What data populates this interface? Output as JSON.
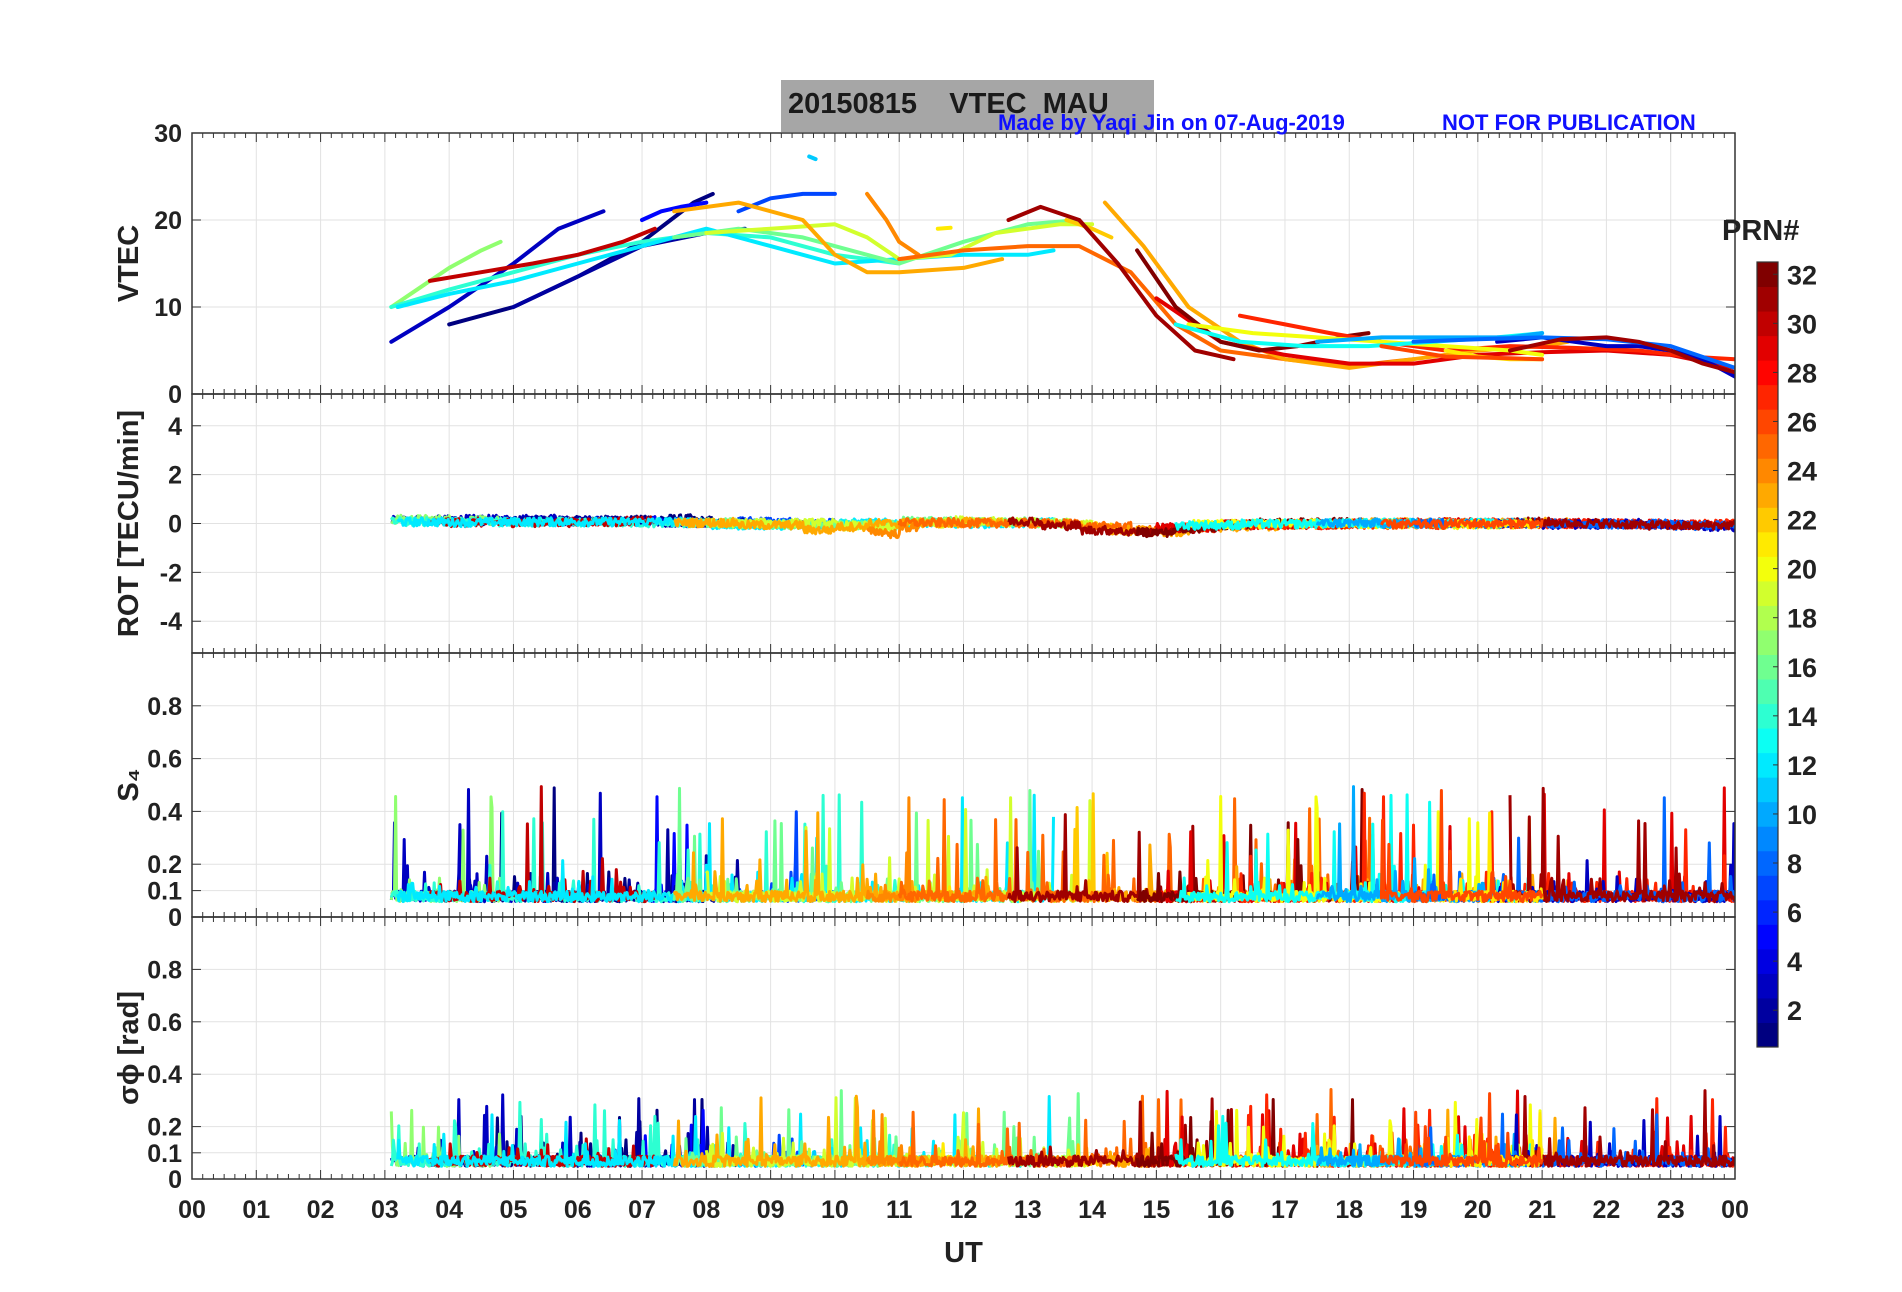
{
  "header": {
    "title": "20150815    VTEC  MAU",
    "credit": "Made by Yaqi Jin on 07-Aug-2019",
    "notice": "NOT FOR PUBLICATION"
  },
  "chart_data": {
    "type": "line",
    "x_axis": {
      "label": "UT",
      "range": [
        0,
        24
      ],
      "ticks": [
        0,
        1,
        2,
        3,
        4,
        5,
        6,
        7,
        8,
        9,
        10,
        11,
        12,
        13,
        14,
        15,
        16,
        17,
        18,
        19,
        20,
        21,
        22,
        23,
        24
      ],
      "tick_labels": [
        "00",
        "01",
        "02",
        "03",
        "04",
        "05",
        "06",
        "07",
        "08",
        "09",
        "10",
        "11",
        "12",
        "13",
        "14",
        "15",
        "16",
        "17",
        "18",
        "19",
        "20",
        "21",
        "22",
        "23",
        "00"
      ]
    },
    "panels": [
      {
        "id": "vtec",
        "ylabel": "VTEC",
        "ylim": [
          0,
          30
        ],
        "yticks": [
          0,
          10,
          20,
          30
        ],
        "ytick_labels": [
          "0",
          "10",
          "20",
          "30"
        ],
        "series": [
          {
            "prn": 1,
            "x": [
              4.0,
              5.0,
              6.0,
              7.0,
              7.8,
              8.1
            ],
            "y": [
              8,
              10,
              13.5,
              17.5,
              22,
              23
            ]
          },
          {
            "prn": 3,
            "x": [
              3.1,
              4.0,
              5.0,
              5.7,
              6.4
            ],
            "y": [
              6,
              10,
              15,
              19,
              21
            ]
          },
          {
            "prn": 5,
            "x": [
              7.0,
              7.3,
              7.6,
              8.0
            ],
            "y": [
              20,
              21,
              21.5,
              22
            ]
          },
          {
            "prn": 7,
            "x": [
              8.5,
              9.0,
              9.5,
              10.0
            ],
            "y": [
              21,
              22.5,
              23,
              23
            ]
          },
          {
            "prn": 2,
            "x": [
              5.0,
              6.0,
              7.0,
              8.0,
              8.6
            ],
            "y": [
              10,
              13.5,
              17,
              18.5,
              19
            ]
          },
          {
            "prn": 17,
            "x": [
              3.1,
              3.6,
              4.0,
              4.5,
              4.8
            ],
            "y": [
              10,
              12.5,
              14.5,
              16.5,
              17.5
            ]
          },
          {
            "prn": 14,
            "x": [
              3.1,
              4.0,
              5.0,
              6.0,
              7.0,
              8.0,
              9.0,
              10.0,
              10.5,
              11.0
            ],
            "y": [
              10,
              12,
              14,
              16,
              17.5,
              18.5,
              18,
              16,
              15.5,
              15
            ]
          },
          {
            "prn": 30,
            "x": [
              3.7,
              4.5,
              5.3,
              6.0,
              6.7,
              7.2
            ],
            "y": [
              13,
              14,
              15,
              16,
              17.5,
              19
            ]
          },
          {
            "prn": 12,
            "x": [
              3.2,
              4.0,
              5.0,
              6.0,
              7.0,
              8.0,
              9.0,
              10.0,
              11.0,
              12.0,
              13.0,
              13.4
            ],
            "y": [
              10,
              11.5,
              13,
              15,
              17,
              19,
              17,
              15,
              15.5,
              16,
              16,
              16.5
            ]
          },
          {
            "prn": 11,
            "x": [
              9.6,
              9.7
            ],
            "y": [
              27.3,
              27.0
            ]
          },
          {
            "prn": 16,
            "x": [
              7.5,
              8.5,
              9.5,
              10.5,
              11.0,
              12.0,
              13.0,
              13.8
            ],
            "y": [
              18,
              19,
              18,
              16,
              15,
              17.5,
              19.5,
              20
            ]
          },
          {
            "prn": 19,
            "x": [
              8.0,
              9.0,
              10.0,
              10.5,
              11.0,
              11.8,
              12.5,
              13.5,
              14.0
            ],
            "y": [
              18.5,
              19,
              19.5,
              18,
              15.5,
              16,
              18.5,
              19.5,
              19.5
            ]
          },
          {
            "prn": 21,
            "x": [
              11.6,
              11.8
            ],
            "y": [
              19.0,
              19.1
            ]
          },
          {
            "prn": 22,
            "x": [
              13.6,
              14.0,
              14.3
            ],
            "y": [
              20,
              19,
              18
            ]
          },
          {
            "prn": 23,
            "x": [
              7.5,
              8.5,
              9.5,
              10.0,
              10.5,
              11.0,
              12.0,
              12.6
            ],
            "y": [
              21,
              22,
              20,
              16,
              14,
              14,
              14.5,
              15.5
            ]
          },
          {
            "prn": 24,
            "x": [
              10.5,
              10.8,
              11.0,
              11.3
            ],
            "y": [
              23,
              20,
              17.5,
              16
            ]
          },
          {
            "prn": 25,
            "x": [
              11.0,
              12.0,
              13.0,
              13.8,
              14.6,
              15.3,
              16.0,
              17.0,
              18.0,
              19.0
            ],
            "y": [
              15.5,
              16.5,
              17,
              17,
              14,
              8,
              5,
              4,
              3.2,
              4
            ]
          },
          {
            "prn": 23,
            "x": [
              14.2,
              14.8,
              15.5,
              16.3,
              17.0,
              18.0,
              19.0,
              20.0,
              21.0,
              21.4
            ],
            "y": [
              22,
              17,
              10,
              6,
              4,
              3,
              4,
              5,
              5.5,
              6
            ]
          },
          {
            "prn": 31,
            "x": [
              12.7,
              13.2,
              13.8,
              14.4,
              15.0,
              15.6,
              16.2
            ],
            "y": [
              20,
              21.5,
              20,
              15,
              9,
              5,
              4
            ]
          },
          {
            "prn": 29,
            "x": [
              15.0,
              16.0,
              17.0,
              18.0,
              19.0,
              20.0,
              21.0,
              22.0,
              23.0,
              24.0
            ],
            "y": [
              11,
              6,
              4.5,
              3.5,
              3.5,
              4.5,
              4.8,
              5,
              4.5,
              3
            ]
          },
          {
            "prn": 32,
            "x": [
              14.7,
              15.3,
              16.0,
              16.6,
              17.2,
              18.0,
              18.3
            ],
            "y": [
              16.5,
              10,
              6,
              5,
              5.5,
              6.7,
              7
            ]
          },
          {
            "prn": 27,
            "x": [
              16.3,
              17.0,
              17.7,
              18.5,
              19.5,
              20.5,
              21.5,
              22.5,
              23.3,
              24.0
            ],
            "y": [
              9,
              8,
              7,
              6,
              5,
              5.5,
              5.3,
              5,
              4.3,
              4
            ]
          },
          {
            "prn": 20,
            "x": [
              15.5,
              16.5,
              17.5,
              18.5,
              19.5,
              20.5,
              21.0
            ],
            "y": [
              8,
              7,
              6.5,
              6,
              5.5,
              5,
              4.5
            ]
          },
          {
            "prn": 13,
            "x": [
              15.3,
              16.3,
              17.3,
              18.3,
              19.3,
              20.3,
              21.0
            ],
            "y": [
              8,
              6,
              5.5,
              5.5,
              6,
              6.5,
              7
            ]
          },
          {
            "prn": 10,
            "x": [
              17.5,
              18.5,
              19.5,
              20.5,
              21.0
            ],
            "y": [
              6,
              6.5,
              6.5,
              6.5,
              7
            ]
          },
          {
            "prn": 3,
            "x": [
              20.3,
              21.0,
              21.5,
              22.0,
              22.5,
              23.0,
              23.5,
              24.0
            ],
            "y": [
              6,
              6.5,
              6,
              5.5,
              5.5,
              5,
              4,
              2
            ]
          },
          {
            "prn": 8,
            "x": [
              19.0,
              20.0,
              21.0,
              22.0,
              23.0,
              24.0
            ],
            "y": [
              6,
              6.3,
              6.5,
              6.3,
              5.5,
              3
            ]
          },
          {
            "prn": 31,
            "x": [
              20.5,
              21.3,
              22.0,
              22.5,
              23.0,
              23.5,
              24.0
            ],
            "y": [
              5,
              6.3,
              6.5,
              6,
              5,
              3.5,
              2.5
            ]
          },
          {
            "prn": 21,
            "x": [
              19.5,
              20.0,
              20.5,
              21.0
            ],
            "y": [
              5,
              4.3,
              4,
              4
            ]
          },
          {
            "prn": 26,
            "x": [
              18.5,
              19.5,
              20.5,
              21.0
            ],
            "y": [
              5.5,
              4.3,
              4.1,
              4
            ]
          }
        ]
      },
      {
        "id": "rot",
        "ylabel": "ROT [TECU/min]",
        "ylim": [
          -5.3,
          5.3
        ],
        "yticks": [
          -4,
          -2,
          0,
          2,
          4
        ],
        "ytick_labels": [
          "-4",
          "-2",
          "0",
          "2",
          "4"
        ]
      },
      {
        "id": "s4",
        "ylabel": "S₄",
        "ylim": [
          0,
          1
        ],
        "yticks": [
          0,
          0.1,
          0.2,
          0.4,
          0.6,
          0.8
        ],
        "ytick_labels": [
          "0",
          "0.1",
          "0.2",
          "0.4",
          "0.6",
          "0.8"
        ]
      },
      {
        "id": "sigma_phi",
        "ylabel": "σϕ [rad]",
        "ylim": [
          0,
          1
        ],
        "yticks": [
          0,
          0.1,
          0.2,
          0.4,
          0.6,
          0.8
        ],
        "ytick_labels": [
          "0",
          "0.1",
          "0.2",
          "0.4",
          "0.6",
          "0.8"
        ]
      }
    ],
    "colorbar": {
      "title": "PRN#",
      "range": [
        1,
        32
      ],
      "ticks": [
        2,
        4,
        6,
        8,
        10,
        12,
        14,
        16,
        18,
        20,
        22,
        24,
        26,
        28,
        30,
        32
      ],
      "tick_labels": [
        "2",
        "4",
        "6",
        "8",
        "10",
        "12",
        "14",
        "16",
        "18",
        "20",
        "22",
        "24",
        "26",
        "28",
        "30",
        "32"
      ],
      "colormap": "jet"
    }
  }
}
